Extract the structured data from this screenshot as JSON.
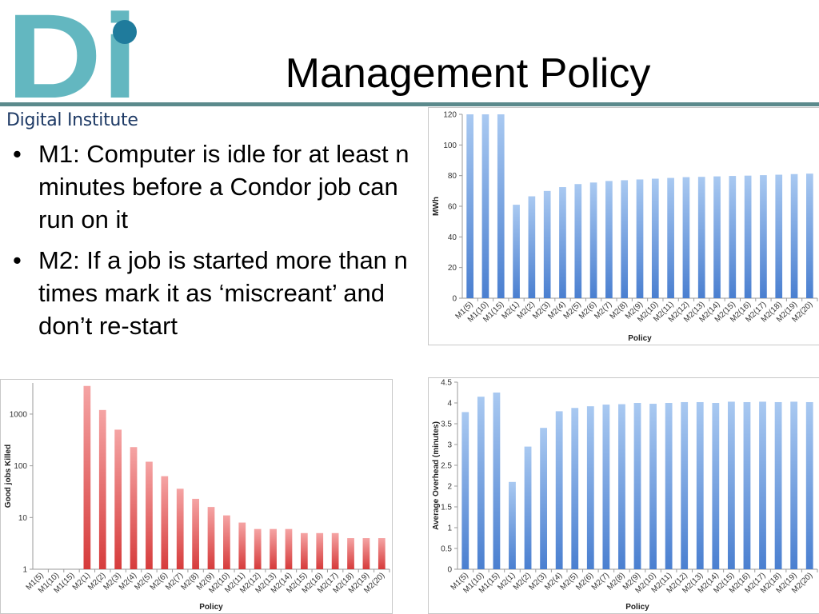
{
  "slide": {
    "title": "Management Policy",
    "logo_text": "Di",
    "logo_caption": "Digital Institute",
    "bullets": [
      "M1: Computer is idle for at least n minutes before a Condor job can run on it",
      "M2: If a job is started more than n times mark it as ‘miscreant’ and don’t re-start"
    ]
  },
  "colors": {
    "logo_teal": "#63b7c0",
    "logo_dark": "#1f7b9c",
    "rule": "#5b8a8c",
    "blue_bar_top": "#a9c9f1",
    "blue_bar_bottom": "#4a7fd0",
    "red_bar_top": "#f5a4a4",
    "red_bar_bottom": "#d63b3b"
  },
  "chart_data": [
    {
      "type": "bar",
      "categories": [
        "M1(5)",
        "M1(10)",
        "M1(15)",
        "M2(1)",
        "M2(2)",
        "M2(3)",
        "M2(4)",
        "M2(5)",
        "M2(6)",
        "M2(7)",
        "M2(8)",
        "M2(9)",
        "M2(10)",
        "M2(11)",
        "M2(12)",
        "M2(13)",
        "M2(14)",
        "M2(15)",
        "M2(16)",
        "M2(17)",
        "M2(18)",
        "M2(19)",
        "M2(20)"
      ],
      "values": [
        122,
        122,
        122,
        61,
        66.5,
        70,
        72.5,
        74.5,
        75.5,
        76.5,
        77,
        77.5,
        78,
        78.5,
        79,
        79.2,
        79.5,
        79.8,
        80,
        80.3,
        80.6,
        81,
        81.3
      ],
      "xlabel": "Policy",
      "ylabel": "MWh",
      "ylim": [
        0,
        120
      ],
      "yticks": [
        0,
        20,
        40,
        60,
        80,
        100,
        120
      ],
      "scale": "linear",
      "grid": false,
      "color": "blue"
    },
    {
      "type": "bar",
      "categories": [
        "M1(5)",
        "M1(10)",
        "M1(15)",
        "M2(1)",
        "M2(2)",
        "M2(3)",
        "M2(4)",
        "M2(5)",
        "M2(6)",
        "M2(7)",
        "M2(8)",
        "M2(9)",
        "M2(10)",
        "M2(11)",
        "M2(12)",
        "M2(13)",
        "M2(14)",
        "M2(15)",
        "M2(16)",
        "M2(17)",
        "M2(18)",
        "M2(19)",
        "M2(20)"
      ],
      "values": [
        1,
        1,
        1,
        3500,
        1200,
        500,
        230,
        120,
        63,
        36,
        23,
        16,
        11,
        8,
        6,
        6,
        6,
        5,
        5,
        5,
        4,
        4,
        4
      ],
      "xlabel": "Policy",
      "ylabel": "Good jobs Killed",
      "ylim": [
        1,
        4000
      ],
      "yticks": [
        1,
        10,
        100,
        1000
      ],
      "scale": "log",
      "grid": false,
      "color": "red"
    },
    {
      "type": "bar",
      "categories": [
        "M1(5)",
        "M1(10)",
        "M1(15)",
        "M2(1)",
        "M2(2)",
        "M2(3)",
        "M2(4)",
        "M2(5)",
        "M2(6)",
        "M2(7)",
        "M2(8)",
        "M2(9)",
        "M2(10)",
        "M2(11)",
        "M2(12)",
        "M2(13)",
        "M2(14)",
        "M2(15)",
        "M2(16)",
        "M2(17)",
        "M2(18)",
        "M2(19)",
        "M2(20)"
      ],
      "values": [
        3.78,
        4.15,
        4.25,
        2.1,
        2.95,
        3.4,
        3.8,
        3.88,
        3.92,
        3.96,
        3.97,
        4.0,
        3.98,
        4.0,
        4.02,
        4.02,
        4.0,
        4.03,
        4.02,
        4.03,
        4.02,
        4.03,
        4.02
      ],
      "xlabel": "Policy",
      "ylabel": "Average Overhead (minutes)",
      "ylim": [
        0,
        4.5
      ],
      "yticks": [
        0,
        0.5,
        1,
        1.5,
        2,
        2.5,
        3,
        3.5,
        4,
        4.5
      ],
      "scale": "linear",
      "grid": false,
      "color": "blue"
    }
  ]
}
